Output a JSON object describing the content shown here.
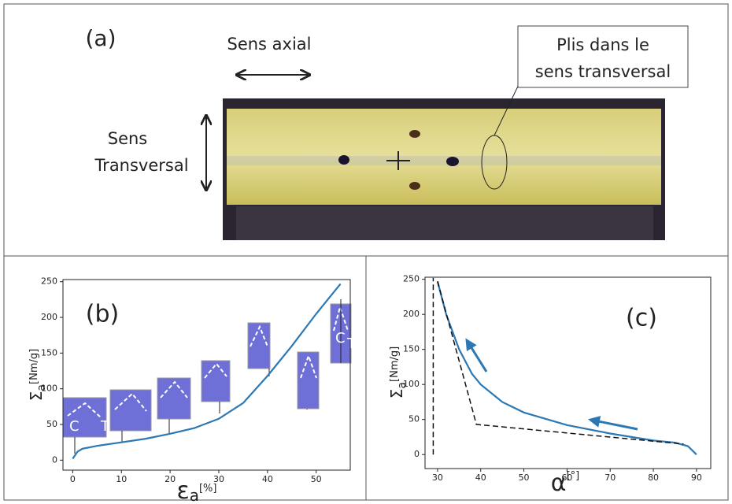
{
  "panel_a": {
    "panel_label": "(a)",
    "axial": "Sens axial",
    "transverse_1": "Sens",
    "transverse_2": "Transversal",
    "callout_1": "Plis dans le",
    "callout_2": "sens transversal"
  },
  "chart_data": [
    {
      "type": "line",
      "panel_label": "(b)",
      "xlabel": {
        "symbol": "ε",
        "subscript": "a",
        "unit": "[%]"
      },
      "ylabel": {
        "symbol": "Σ",
        "subscript": "a",
        "unit": "[Nm/g]"
      },
      "xlim": [
        -2,
        57
      ],
      "ylim": [
        -14,
        253
      ],
      "xticks": [
        0,
        10,
        20,
        30,
        40,
        50
      ],
      "yticks": [
        0,
        50,
        100,
        150,
        200,
        250
      ],
      "annotations": [
        "C",
        "T",
        "C",
        "T"
      ],
      "series": [
        {
          "color": "#2b78b4",
          "dash": false,
          "x": [
            0,
            1,
            2,
            5,
            10,
            15,
            20,
            25,
            30,
            35,
            40,
            45,
            50,
            55
          ],
          "values": [
            2,
            12,
            16,
            20,
            25,
            30,
            37,
            45,
            58,
            80,
            118,
            160,
            205,
            247
          ]
        }
      ]
    },
    {
      "type": "line",
      "panel_label": "(c)",
      "xlabel": {
        "symbol": "α",
        "subscript": "",
        "unit": "[°]"
      },
      "ylabel": {
        "symbol": "Σ",
        "subscript": "a",
        "unit": "[Nm/g]"
      },
      "xlim": [
        27.1,
        93.3
      ],
      "ylim": [
        -20,
        253
      ],
      "xticks": [
        30,
        40,
        50,
        60,
        70,
        80,
        90
      ],
      "yticks": [
        0,
        50,
        100,
        150,
        200,
        250
      ],
      "series": [
        {
          "color": "#2b78b4",
          "dash": false,
          "x": [
            30,
            32,
            35,
            38,
            40,
            45,
            50,
            60,
            70,
            80,
            85,
            88,
            90
          ],
          "values": [
            247,
            200,
            150,
            115,
            100,
            75,
            60,
            42,
            30,
            20,
            17,
            12,
            0
          ]
        },
        {
          "color": "#111111",
          "dash": true,
          "x": [
            30,
            39,
            87
          ],
          "values": [
            247,
            43,
            15
          ]
        },
        {
          "color": "#111111",
          "dash": true,
          "x": [
            29,
            29
          ],
          "values": [
            0,
            252
          ]
        }
      ]
    }
  ]
}
